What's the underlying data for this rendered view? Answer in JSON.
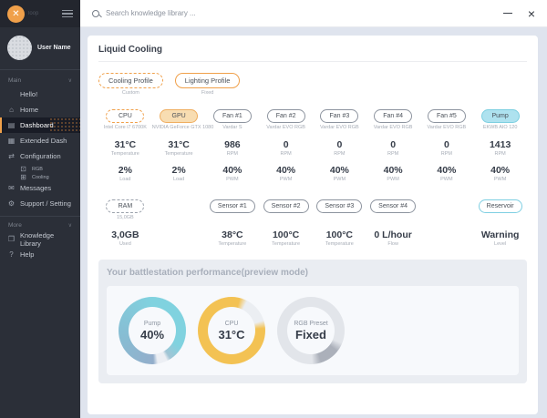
{
  "theme": {
    "accent_orange": "#F0A04A",
    "accent_cyan": "#7FCFE2",
    "sidebar_bg": "#2B2F38",
    "sidebar_header_bg": "#23262E",
    "selected_bg": "#191C26",
    "window_bg": "#DFE4EE"
  },
  "window": {
    "close_glyph": "×"
  },
  "topbar": {
    "search_placeholder": "Search knowledge library ..."
  },
  "sidebar": {
    "logo_text": "loop",
    "user_name": "User Name",
    "icons": {
      "home": "⌂",
      "dashboard": "▤",
      "extended-dash": "▦",
      "configuration": "⇄",
      "rgb": "⊡",
      "cooling": "⊞",
      "messages": "✉",
      "support": "⚙",
      "library": "❒",
      "help": "?"
    },
    "sections": [
      {
        "label": "Main",
        "chevron": "∨",
        "items": [
          {
            "label": "Hello!",
            "icon": ""
          },
          {
            "label": "Home",
            "icon": "home"
          },
          {
            "label": "Dashboard",
            "icon": "dashboard",
            "selected": true
          },
          {
            "label": "Extended Dash",
            "icon": "extended-dash"
          },
          {
            "label": "Configuration",
            "icon": "configuration"
          },
          {
            "label": "RGB",
            "icon": "rgb",
            "indent": true
          },
          {
            "label": "Cooling",
            "icon": "cooling",
            "indent": true
          },
          {
            "label": "Messages",
            "icon": "messages"
          },
          {
            "label": "Support / Setting",
            "icon": "support"
          }
        ]
      },
      {
        "label": "More",
        "chevron": "∨",
        "items": [
          {
            "label": "Knowledge Library",
            "icon": "library"
          },
          {
            "label": "Help",
            "icon": "help"
          }
        ]
      }
    ]
  },
  "liquid_cooling": {
    "title": "Liquid Cooling",
    "profiles": [
      {
        "label": "Cooling Profile",
        "caption": "Custom",
        "style": "dashed"
      },
      {
        "label": "Lighting Profile",
        "caption": "Fixed",
        "style": "solid"
      }
    ],
    "devices": [
      {
        "name": "CPU",
        "subtitle": "Intel Core i7 6700K",
        "style": "dashed-orange",
        "stats": [
          {
            "value": "31°C",
            "label": "Temperature"
          },
          {
            "value": "2%",
            "label": "Load"
          }
        ]
      },
      {
        "name": "GPU",
        "subtitle": "NVIDIA GeForce GTX 1080",
        "style": "filled-orange",
        "stats": [
          {
            "value": "31°C",
            "label": "Temperature"
          },
          {
            "value": "2%",
            "label": "Load"
          }
        ]
      },
      {
        "name": "Fan #1",
        "subtitle": "Vardar S",
        "style": "outline",
        "stats": [
          {
            "value": "986",
            "label": "RPM"
          },
          {
            "value": "40%",
            "label": "PWM"
          }
        ]
      },
      {
        "name": "Fan #2",
        "subtitle": "Vardar EVO RGB",
        "style": "outline",
        "stats": [
          {
            "value": "0",
            "label": "RPM"
          },
          {
            "value": "40%",
            "label": "PWM"
          }
        ]
      },
      {
        "name": "Fan #3",
        "subtitle": "Vardar EVO RGB",
        "style": "outline",
        "stats": [
          {
            "value": "0",
            "label": "RPM"
          },
          {
            "value": "40%",
            "label": "PWM"
          }
        ]
      },
      {
        "name": "Fan #4",
        "subtitle": "Vardar EVO RGB",
        "style": "outline",
        "stats": [
          {
            "value": "0",
            "label": "RPM"
          },
          {
            "value": "40%",
            "label": "PWM"
          }
        ]
      },
      {
        "name": "Fan #5",
        "subtitle": "Vardar EVO RGB",
        "style": "outline",
        "stats": [
          {
            "value": "0",
            "label": "RPM"
          },
          {
            "value": "40%",
            "label": "PWM"
          }
        ]
      },
      {
        "name": "Pump",
        "subtitle": "EKWB AIO 120",
        "style": "filled-cyan",
        "stats": [
          {
            "value": "1413",
            "label": "RPM"
          },
          {
            "value": "40%",
            "label": "PWM"
          }
        ]
      }
    ],
    "sensors": [
      {
        "name": "RAM",
        "subtitle": "15,0GB",
        "style": "dashed-gray",
        "col": 1,
        "stats": [
          {
            "value": "3,0GB",
            "label": "Used"
          }
        ]
      },
      {
        "name": "Sensor #1",
        "subtitle": "",
        "style": "outline",
        "col": 3,
        "stats": [
          {
            "value": "38°C",
            "label": "Temperature"
          }
        ]
      },
      {
        "name": "Sensor #2",
        "subtitle": "",
        "style": "outline",
        "col": 4,
        "stats": [
          {
            "value": "100°C",
            "label": "Temperature"
          }
        ]
      },
      {
        "name": "Sensor #3",
        "subtitle": "",
        "style": "outline",
        "col": 5,
        "stats": [
          {
            "value": "100°C",
            "label": "Temperature"
          }
        ]
      },
      {
        "name": "Sensor #4",
        "subtitle": "",
        "style": "outline",
        "col": 6,
        "stats": [
          {
            "value": "0 L/hour",
            "label": "Flow"
          }
        ]
      },
      {
        "name": "Reservoir",
        "subtitle": "",
        "style": "outline-cyan",
        "col": 8,
        "stats": [
          {
            "value": "Warning",
            "label": "Level"
          }
        ]
      }
    ]
  },
  "performance": {
    "title": "Your battlestation performance(preview mode)",
    "gauges": [
      {
        "label": "Pump",
        "value": "40%",
        "ring": "cyan"
      },
      {
        "label": "CPU",
        "value": "31°C",
        "ring": "amber"
      },
      {
        "label": "RGB Preset",
        "value": "Fixed",
        "ring": "gray"
      }
    ]
  }
}
